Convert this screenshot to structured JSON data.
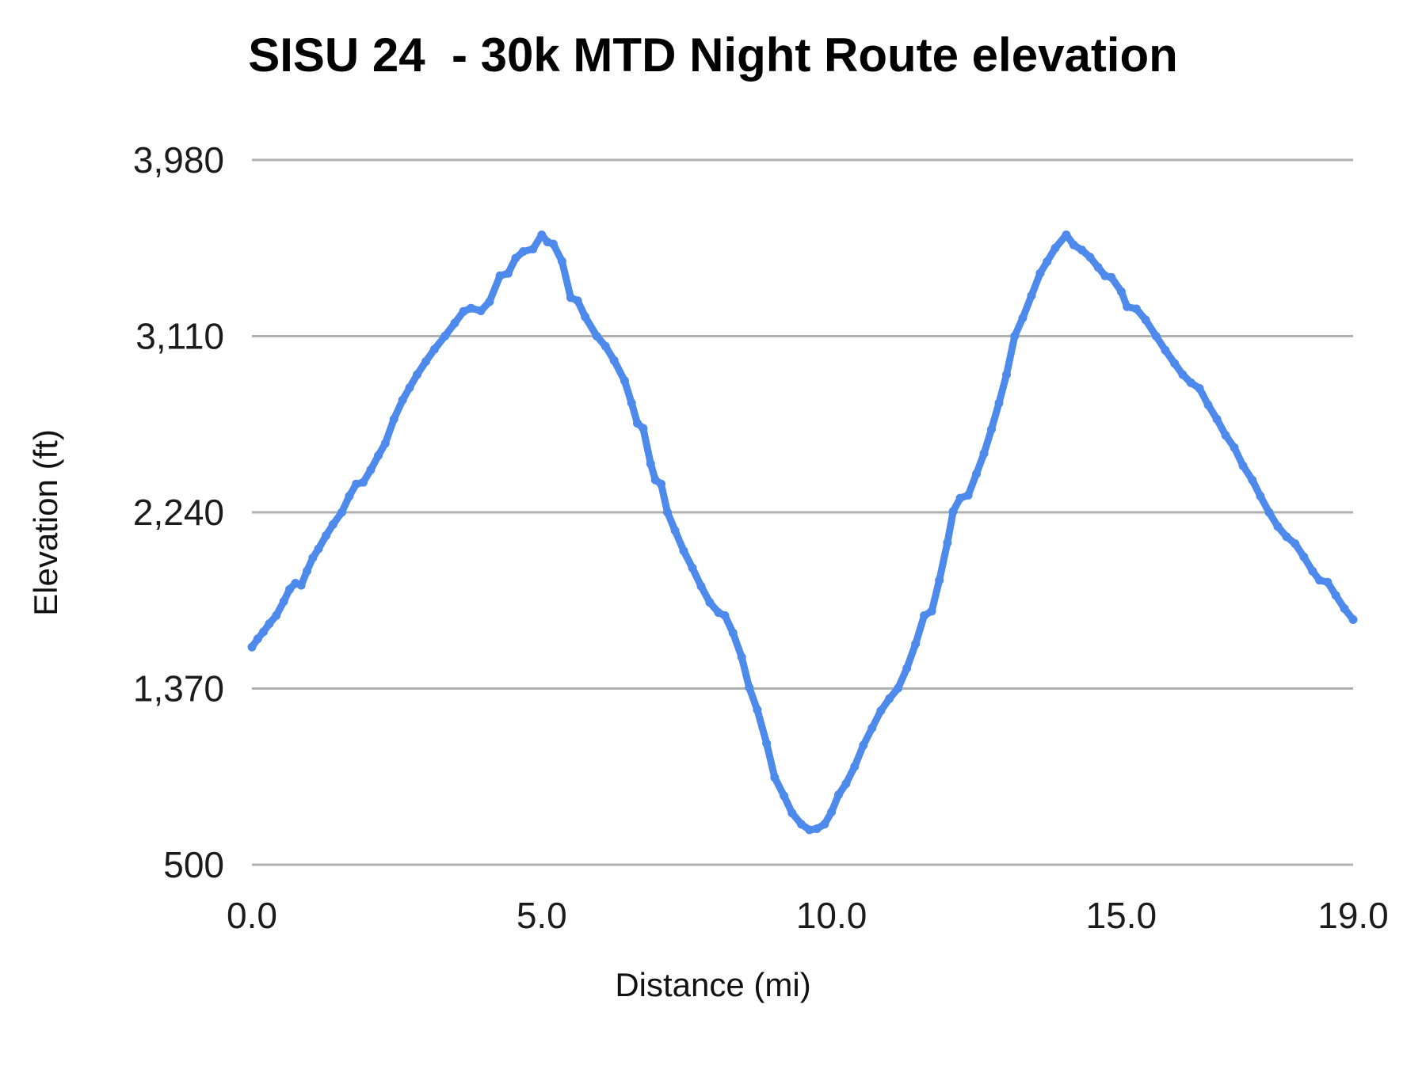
{
  "title": "SISU 24  - 30k MTD Night Route elevation",
  "chart_data": {
    "type": "line",
    "title": "SISU 24  - 30k MTD Night Route elevation",
    "xlabel": "Distance (mi)",
    "ylabel": "Elevation (ft)",
    "xlim": [
      0,
      19
    ],
    "ylim": [
      500,
      3980
    ],
    "grid": "horizontal-only",
    "legend": "none",
    "background_color": "#ffffff",
    "gridline_color": "#b0b0b0",
    "line_color": "#4d8aeb",
    "x_ticks": [
      {
        "value": 0,
        "label": "0.0"
      },
      {
        "value": 5,
        "label": "5.0"
      },
      {
        "value": 10,
        "label": "10.0"
      },
      {
        "value": 15,
        "label": "15.0"
      },
      {
        "value": 19,
        "label": "19.0"
      }
    ],
    "y_ticks": [
      {
        "value": 500,
        "label": "500"
      },
      {
        "value": 1370,
        "label": "1,370"
      },
      {
        "value": 2240,
        "label": "2,240"
      },
      {
        "value": 3110,
        "label": "3,110"
      },
      {
        "value": 3980,
        "label": "3,980"
      }
    ],
    "series": [
      {
        "name": "elevation",
        "points": [
          [
            0.0,
            1575
          ],
          [
            0.1,
            1615
          ],
          [
            0.2,
            1650
          ],
          [
            0.3,
            1690
          ],
          [
            0.42,
            1730
          ],
          [
            0.55,
            1800
          ],
          [
            0.65,
            1860
          ],
          [
            0.75,
            1890
          ],
          [
            0.85,
            1880
          ],
          [
            0.95,
            1950
          ],
          [
            1.05,
            2015
          ],
          [
            1.15,
            2060
          ],
          [
            1.28,
            2125
          ],
          [
            1.4,
            2180
          ],
          [
            1.55,
            2240
          ],
          [
            1.68,
            2320
          ],
          [
            1.8,
            2380
          ],
          [
            1.92,
            2388
          ],
          [
            2.05,
            2450
          ],
          [
            2.18,
            2520
          ],
          [
            2.3,
            2580
          ],
          [
            2.45,
            2700
          ],
          [
            2.6,
            2795
          ],
          [
            2.72,
            2855
          ],
          [
            2.85,
            2920
          ],
          [
            3.0,
            2985
          ],
          [
            3.15,
            3045
          ],
          [
            3.33,
            3110
          ],
          [
            3.5,
            3175
          ],
          [
            3.65,
            3232
          ],
          [
            3.78,
            3248
          ],
          [
            3.95,
            3235
          ],
          [
            4.1,
            3280
          ],
          [
            4.28,
            3408
          ],
          [
            4.42,
            3420
          ],
          [
            4.55,
            3495
          ],
          [
            4.68,
            3528
          ],
          [
            4.85,
            3540
          ],
          [
            5.0,
            3610
          ],
          [
            5.1,
            3575
          ],
          [
            5.2,
            3565
          ],
          [
            5.35,
            3480
          ],
          [
            5.5,
            3300
          ],
          [
            5.62,
            3285
          ],
          [
            5.75,
            3205
          ],
          [
            5.95,
            3110
          ],
          [
            6.1,
            3060
          ],
          [
            6.25,
            2990
          ],
          [
            6.43,
            2890
          ],
          [
            6.55,
            2780
          ],
          [
            6.65,
            2680
          ],
          [
            6.75,
            2655
          ],
          [
            6.88,
            2480
          ],
          [
            6.96,
            2400
          ],
          [
            7.06,
            2380
          ],
          [
            7.17,
            2240
          ],
          [
            7.3,
            2150
          ],
          [
            7.45,
            2050
          ],
          [
            7.6,
            1965
          ],
          [
            7.75,
            1875
          ],
          [
            7.9,
            1795
          ],
          [
            8.05,
            1745
          ],
          [
            8.16,
            1730
          ],
          [
            8.3,
            1645
          ],
          [
            8.45,
            1525
          ],
          [
            8.58,
            1375
          ],
          [
            8.72,
            1265
          ],
          [
            8.88,
            1100
          ],
          [
            9.02,
            930
          ],
          [
            9.18,
            840
          ],
          [
            9.32,
            755
          ],
          [
            9.48,
            700
          ],
          [
            9.62,
            672
          ],
          [
            9.75,
            678
          ],
          [
            9.88,
            700
          ],
          [
            10.0,
            760
          ],
          [
            10.12,
            845
          ],
          [
            10.25,
            900
          ],
          [
            10.4,
            985
          ],
          [
            10.55,
            1090
          ],
          [
            10.7,
            1175
          ],
          [
            10.85,
            1260
          ],
          [
            11.0,
            1320
          ],
          [
            11.15,
            1372
          ],
          [
            11.3,
            1470
          ],
          [
            11.45,
            1590
          ],
          [
            11.6,
            1730
          ],
          [
            11.73,
            1752
          ],
          [
            11.86,
            1905
          ],
          [
            12.0,
            2090
          ],
          [
            12.1,
            2245
          ],
          [
            12.22,
            2310
          ],
          [
            12.36,
            2325
          ],
          [
            12.5,
            2430
          ],
          [
            12.63,
            2530
          ],
          [
            12.76,
            2650
          ],
          [
            12.89,
            2780
          ],
          [
            13.02,
            2920
          ],
          [
            13.16,
            3110
          ],
          [
            13.3,
            3200
          ],
          [
            13.45,
            3310
          ],
          [
            13.6,
            3420
          ],
          [
            13.72,
            3478
          ],
          [
            13.86,
            3545
          ],
          [
            14.05,
            3610
          ],
          [
            14.18,
            3560
          ],
          [
            14.32,
            3535
          ],
          [
            14.46,
            3500
          ],
          [
            14.6,
            3450
          ],
          [
            14.72,
            3408
          ],
          [
            14.83,
            3400
          ],
          [
            15.0,
            3330
          ],
          [
            15.1,
            3255
          ],
          [
            15.26,
            3245
          ],
          [
            15.42,
            3190
          ],
          [
            15.6,
            3110
          ],
          [
            15.76,
            3040
          ],
          [
            15.92,
            2975
          ],
          [
            16.06,
            2920
          ],
          [
            16.2,
            2880
          ],
          [
            16.35,
            2852
          ],
          [
            16.5,
            2770
          ],
          [
            16.65,
            2700
          ],
          [
            16.8,
            2620
          ],
          [
            16.95,
            2560
          ],
          [
            17.1,
            2470
          ],
          [
            17.26,
            2400
          ],
          [
            17.4,
            2320
          ],
          [
            17.55,
            2240
          ],
          [
            17.7,
            2170
          ],
          [
            17.85,
            2120
          ],
          [
            18.0,
            2085
          ],
          [
            18.15,
            2020
          ],
          [
            18.3,
            1950
          ],
          [
            18.42,
            1905
          ],
          [
            18.56,
            1895
          ],
          [
            18.7,
            1830
          ],
          [
            18.85,
            1765
          ],
          [
            19.0,
            1710
          ]
        ]
      }
    ]
  }
}
